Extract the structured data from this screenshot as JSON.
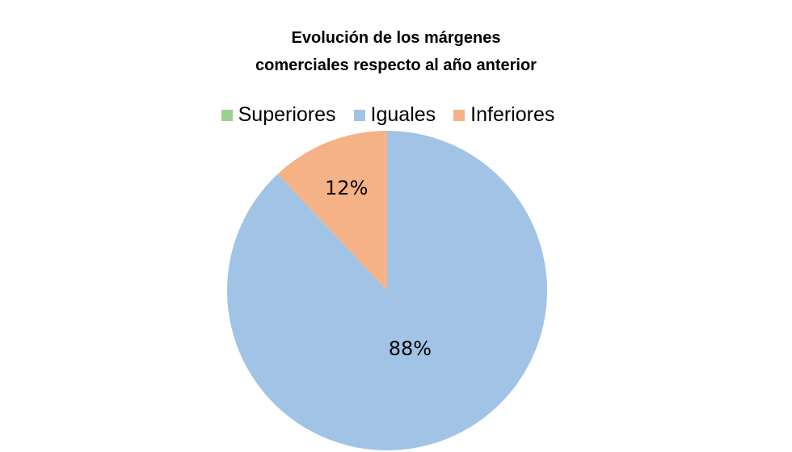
{
  "chart_data": {
    "type": "pie",
    "title": [
      "Evolución de los márgenes",
      "comerciales respecto al año anterior"
    ],
    "legend_position": "top",
    "series": [
      {
        "name": "Superiores",
        "value": 0,
        "color": "#9dd08c"
      },
      {
        "name": "Iguales",
        "value": 88,
        "color": "#a1c4e6",
        "label": "88%"
      },
      {
        "name": "Inferiores",
        "value": 12,
        "color": "#f4b286",
        "label": "12%"
      }
    ]
  }
}
